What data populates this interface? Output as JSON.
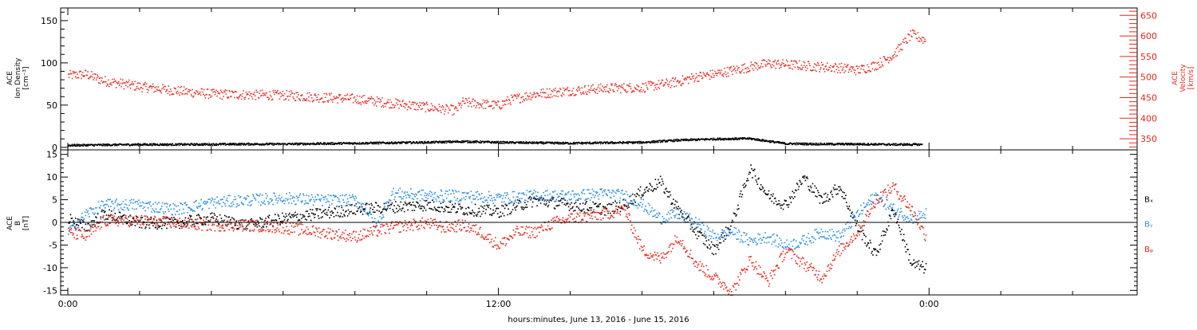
{
  "colors": {
    "black": "#000000",
    "red": "#e8261c",
    "blue": "#2a8ee0"
  },
  "footer": {
    "xlabel": "hours:minutes, June 13, 2016 - June 15, 2016"
  },
  "chart_data": [
    {
      "type": "scatter",
      "panel": "top",
      "ylabel_left": [
        "ACE",
        "Ion Density",
        "[cm⁻³]"
      ],
      "ylabel_right": [
        "ACE",
        "Velocity",
        "[km/s]"
      ],
      "ylim_left": [
        -3,
        165
      ],
      "yticks_left": [
        0,
        50,
        100,
        150
      ],
      "ylim_right": [
        323,
        668
      ],
      "yticks_right": [
        350,
        400,
        450,
        500,
        550,
        600,
        650
      ],
      "xlim_hours": [
        -0.2,
        29.8
      ],
      "xticks": [
        {
          "h": 0,
          "label": "0:00"
        },
        {
          "h": 12,
          "label": "12:00"
        },
        {
          "h": 24,
          "label": "0:00"
        }
      ],
      "series": [
        {
          "name": "Ion Density",
          "axis": "left",
          "color": "#000000",
          "x": [
            0,
            1,
            2,
            3,
            4,
            5,
            6,
            7,
            8,
            9,
            10,
            11,
            12,
            13,
            14,
            15,
            16,
            17,
            18,
            19,
            20,
            21,
            22,
            23,
            23.8
          ],
          "y": [
            3,
            3.5,
            4,
            4,
            4.2,
            4.5,
            4.5,
            5,
            5.5,
            6,
            6.5,
            7.5,
            6.5,
            6,
            5.5,
            6,
            6.5,
            9,
            10.5,
            11,
            5,
            4.5,
            4.5,
            4,
            4
          ]
        },
        {
          "name": "Velocity",
          "axis": "right",
          "color": "#e8261c",
          "x": [
            0,
            0.5,
            1,
            2,
            3,
            4,
            5,
            6,
            7,
            8,
            9,
            10,
            10.8,
            11,
            12,
            12.3,
            13,
            14,
            15,
            16,
            17,
            17.5,
            18,
            19,
            19.5,
            20,
            21,
            21.5,
            22,
            22.5,
            23,
            23.5,
            23.9
          ],
          "y": [
            505,
            508,
            492,
            478,
            468,
            460,
            458,
            457,
            452,
            448,
            438,
            428,
            420,
            440,
            432,
            445,
            460,
            468,
            474,
            476,
            490,
            502,
            508,
            526,
            534,
            532,
            526,
            524,
            518,
            530,
            555,
            605,
            590
          ]
        }
      ]
    },
    {
      "type": "scatter",
      "panel": "bottom",
      "ylabel_left": [
        "ACE",
        "B",
        "[nT]"
      ],
      "ylim": [
        -16,
        16
      ],
      "yticks": [
        -15,
        -10,
        -5,
        0,
        5,
        10,
        15
      ],
      "xlim_hours": [
        -0.2,
        29.8
      ],
      "legend": [
        "Bₓ",
        "Bᵧ",
        "Bᵩ"
      ],
      "series": [
        {
          "name": "Bx",
          "color": "#000000",
          "x": [
            0,
            0.5,
            1,
            2,
            3,
            4,
            5,
            6,
            7,
            8,
            9,
            10,
            11,
            12,
            13,
            14,
            15,
            15.5,
            16,
            16.5,
            17,
            17.5,
            18,
            18.5,
            19,
            19.5,
            20,
            20.5,
            21,
            21.5,
            22,
            22.5,
            23,
            23.5,
            23.9
          ],
          "y": [
            1,
            -1,
            2,
            0,
            0,
            1,
            -0.5,
            1,
            2,
            3,
            3.5,
            4,
            3,
            2.5,
            5,
            4,
            3,
            4,
            7,
            9,
            3,
            -2,
            -6,
            0,
            12,
            6,
            4,
            10,
            5,
            8,
            -1,
            -7,
            3,
            -9,
            -10
          ]
        },
        {
          "name": "By",
          "color": "#2a8ee0",
          "x": [
            0,
            0.5,
            1,
            2,
            3,
            4,
            5,
            6,
            7,
            8,
            8.3,
            8.6,
            9,
            10,
            11,
            12,
            13,
            14,
            15,
            15.5,
            16,
            16.5,
            17,
            17.5,
            18,
            18.5,
            19,
            19.5,
            20,
            20.5,
            21,
            21.5,
            22,
            22.5,
            23,
            23.5,
            23.9
          ],
          "y": [
            -2,
            2,
            4,
            4,
            3,
            4.5,
            5,
            5.5,
            5,
            5,
            3,
            -1,
            6.5,
            6,
            6,
            5.5,
            6,
            6,
            6.5,
            6,
            4,
            1,
            2,
            0,
            -3,
            -2,
            -4,
            -3,
            -5,
            -4,
            -2,
            -3,
            2,
            6,
            3,
            1,
            2
          ]
        },
        {
          "name": "Bz",
          "color": "#e8261c",
          "x": [
            0,
            0.5,
            1,
            2,
            3,
            4,
            5,
            6,
            7,
            8,
            9,
            10,
            10.5,
            11,
            11.5,
            12,
            12.5,
            13,
            13.5,
            14,
            15,
            15.5,
            16,
            16.5,
            17,
            17.5,
            18,
            18.5,
            19,
            19.5,
            20,
            20.5,
            21,
            21.5,
            22,
            22.5,
            23,
            23.5,
            23.9
          ],
          "y": [
            -2,
            -3,
            0.5,
            0.5,
            0,
            -0.5,
            -0.5,
            -1,
            -2,
            -3,
            -1,
            0,
            -1,
            -0.5,
            -2,
            -5,
            -2,
            -2,
            0,
            1,
            2,
            3,
            -6,
            -8,
            -3,
            -9,
            -12,
            -15,
            -8,
            -13,
            -6,
            -9,
            -12,
            -6,
            -2,
            5,
            8,
            3,
            -3
          ]
        }
      ]
    }
  ]
}
